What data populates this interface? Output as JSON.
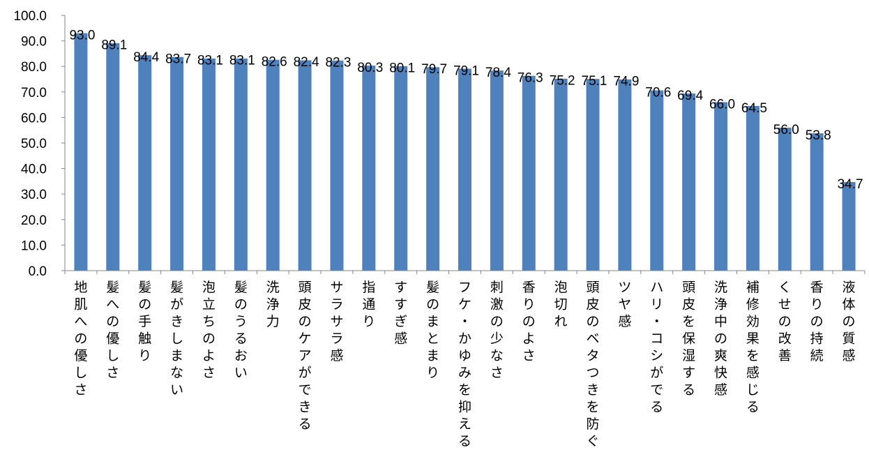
{
  "chart_data": {
    "type": "bar",
    "title": "",
    "xlabel": "",
    "ylabel": "",
    "ylim": [
      0,
      100
    ],
    "yticks": [
      "0.0",
      "10.0",
      "20.0",
      "30.0",
      "40.0",
      "50.0",
      "60.0",
      "70.0",
      "80.0",
      "90.0",
      "100.0"
    ],
    "grid": false,
    "legend": "none",
    "bar_color": "#4f81bd",
    "categories": [
      "地肌への優しさ",
      "髪への優しさ",
      "髪の手触り",
      "髪がきしまない",
      "泡立ちのよさ",
      "髪のうるおい",
      "洗浄力",
      "頭皮のケアができる",
      "サラサラ感",
      "指通り",
      "すすぎ感",
      "髪のまとまり",
      "フケ・かゆみを抑える",
      "刺激の少なさ",
      "香りのよさ",
      "泡切れ",
      "頭皮のベタつきを防ぐ",
      "ツヤ感",
      "ハリ・コシがでる",
      "頭皮を保湿する",
      "洗浄中の爽快感",
      "補修効果を感じる",
      "くせの改善",
      "香りの持続",
      "液体の質感"
    ],
    "values": [
      93.0,
      89.1,
      84.4,
      83.7,
      83.1,
      83.1,
      82.6,
      82.4,
      82.3,
      80.3,
      80.1,
      79.7,
      79.1,
      78.4,
      76.3,
      75.2,
      75.1,
      74.9,
      70.6,
      69.4,
      66.0,
      64.5,
      56.0,
      53.8,
      34.7
    ],
    "data_labels": [
      "93.0",
      "89.1",
      "84.4",
      "83.7",
      "83.1",
      "83.1",
      "82.6",
      "82.4",
      "82.3",
      "80.3",
      "80.1",
      "79.7",
      "79.1",
      "78.4",
      "76.3",
      "75.2",
      "75.1",
      "74.9",
      "70.6",
      "69.4",
      "66.0",
      "64.5",
      "56.0",
      "53.8",
      "34.7"
    ]
  }
}
